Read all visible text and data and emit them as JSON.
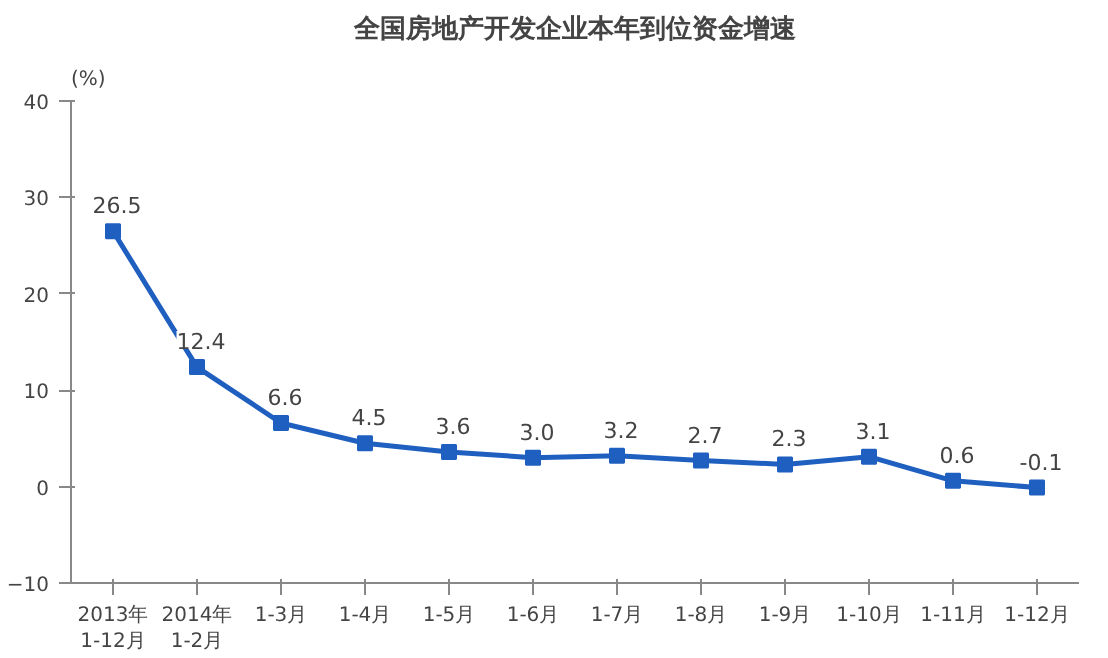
{
  "chart_data": {
    "type": "line",
    "title": "全国房地产开发企业本年到位资金增速",
    "ylabel": "(%)",
    "categories": [
      "2013年\n1-12月",
      "2014年\n1-2月",
      "1-3月",
      "1-4月",
      "1-5月",
      "1-6月",
      "1-7月",
      "1-8月",
      "1-9月",
      "1-10月",
      "1-11月",
      "1-12月"
    ],
    "series": [
      {
        "color": "#1f5fc0",
        "values": [
          26.5,
          12.4,
          6.6,
          4.5,
          3.6,
          3.0,
          3.2,
          2.7,
          2.3,
          3.1,
          0.6,
          -0.1
        ],
        "value_labels": [
          "26.5",
          "12.4",
          "6.6",
          "4.5",
          "3.6",
          "3.0",
          "3.2",
          "2.7",
          "2.3",
          "3.1",
          "0.6",
          "-0.1"
        ]
      }
    ],
    "ylim": [
      -10,
      40
    ],
    "yticks": [
      -10,
      0,
      10,
      20,
      30,
      40
    ],
    "marker": "square",
    "line_style": "solid"
  }
}
